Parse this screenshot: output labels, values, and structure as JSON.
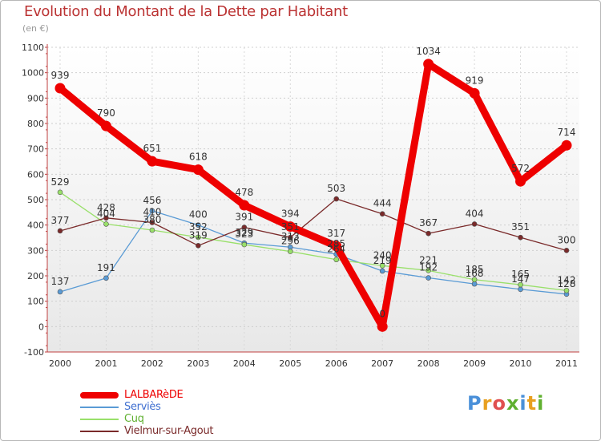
{
  "header": {
    "title": "Evolution du Montant de la Dette par Habitant",
    "subtitle": "(en €)"
  },
  "logo": {
    "letters": [
      {
        "ch": "P",
        "color": "#4a90d9"
      },
      {
        "ch": "r",
        "color": "#e8a020"
      },
      {
        "ch": "o",
        "color": "#e05050"
      },
      {
        "ch": "x",
        "color": "#60b030"
      },
      {
        "ch": "i",
        "color": "#4a90d9"
      },
      {
        "ch": "t",
        "color": "#e8a020"
      },
      {
        "ch": "i",
        "color": "#60b030"
      }
    ]
  },
  "chart_data": {
    "type": "line",
    "title": "Evolution du Montant de la Dette par Habitant",
    "subtitle": "(en €)",
    "x": [
      "2000",
      "2001",
      "2002",
      "2003",
      "2004",
      "2005",
      "2006",
      "2007",
      "2008",
      "2009",
      "2010",
      "2011"
    ],
    "y_ticks": [
      "-100",
      "0",
      "100",
      "200",
      "300",
      "400",
      "500",
      "600",
      "700",
      "800",
      "900",
      "1000",
      "1100"
    ],
    "ylim": [
      -100,
      1100
    ],
    "grid": true,
    "legend_position": "bottom-left",
    "series": [
      {
        "name": "LALBARèDE",
        "color": "#ee0000",
        "values": [
          939,
          790,
          651,
          618,
          478,
          394,
          317,
          0,
          1034,
          919,
          572,
          714
        ],
        "labels": [
          "939",
          "790",
          "651",
          "618",
          "478",
          "394",
          "317",
          "0",
          "1034",
          "919",
          "572",
          "714"
        ]
      },
      {
        "name": "Serviès",
        "color": "#5a9bd5",
        "values": [
          137,
          191,
          456,
          400,
          329,
          313,
          285,
          219,
          192,
          168,
          147,
          128
        ],
        "labels": [
          "137",
          "191",
          "456",
          "400",
          "329",
          "313",
          "285",
          "219",
          "192",
          "168",
          "147",
          "128"
        ]
      },
      {
        "name": "Cuq",
        "color": "#99e06a",
        "values": [
          529,
          404,
          380,
          352,
          323,
          296,
          264,
          240,
          221,
          185,
          165,
          142
        ],
        "labels": [
          "529",
          "404",
          "380",
          "352",
          "323",
          "296",
          "264",
          "240",
          "221",
          "185",
          "165",
          "142"
        ]
      },
      {
        "name": "Vielmur-sur-Agout",
        "color": "#7a2a2a",
        "values": [
          377,
          428,
          410,
          319,
          391,
          351,
          503,
          444,
          367,
          404,
          351,
          300
        ],
        "labels": [
          "377",
          "428",
          "410",
          "319",
          "391",
          "351",
          "503",
          "444",
          "367",
          "404",
          "351",
          "300"
        ]
      }
    ]
  }
}
